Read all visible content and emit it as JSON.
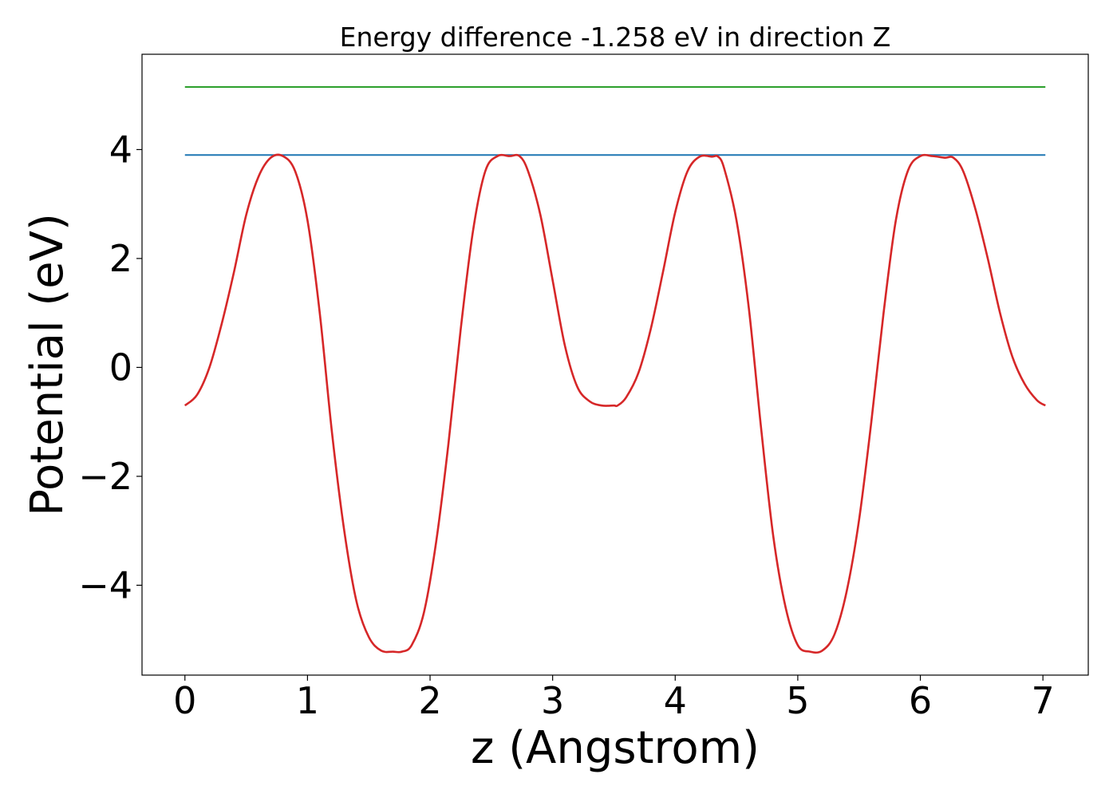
{
  "chart_data": {
    "type": "line",
    "title": "Energy difference -1.258 eV in direction Z",
    "xlabel": "z (Angstrom)",
    "ylabel": "Potential (eV)",
    "xlim": [
      -0.35,
      7.37
    ],
    "ylim": [
      -5.65,
      5.75
    ],
    "xticks": [
      0,
      1,
      2,
      3,
      4,
      5,
      6,
      7
    ],
    "xtick_labels": [
      "0",
      "1",
      "2",
      "3",
      "4",
      "5",
      "6",
      "7"
    ],
    "yticks": [
      -4,
      -2,
      0,
      2,
      4
    ],
    "ytick_labels": [
      "−4",
      "−2",
      "0",
      "2",
      "4"
    ],
    "grid": false,
    "legend": "none",
    "series": [
      {
        "color": "#2ca02c",
        "x": [
          0,
          7.02
        ],
        "y": [
          5.15,
          5.15
        ]
      },
      {
        "color": "#1f77b4",
        "x": [
          0,
          7.02
        ],
        "y": [
          3.9,
          3.9
        ]
      },
      {
        "color": "#d62728",
        "x": [
          0,
          0.1,
          0.2,
          0.3,
          0.4,
          0.5,
          0.6,
          0.7,
          0.8,
          0.9,
          1.0,
          1.1,
          1.2,
          1.3,
          1.4,
          1.5,
          1.6,
          1.7,
          1.77,
          1.85,
          1.95,
          2.05,
          2.15,
          2.25,
          2.35,
          2.45,
          2.55,
          2.65,
          2.73,
          2.8,
          2.9,
          3.0,
          3.1,
          3.2,
          3.3,
          3.4,
          3.5,
          3.53,
          3.6,
          3.7,
          3.8,
          3.9,
          4.0,
          4.1,
          4.2,
          4.3,
          4.35,
          4.4,
          4.5,
          4.6,
          4.7,
          4.8,
          4.9,
          5.0,
          5.1,
          5.2,
          5.3,
          5.4,
          5.5,
          5.6,
          5.7,
          5.8,
          5.9,
          6.0,
          6.1,
          6.2,
          6.27,
          6.35,
          6.45,
          6.55,
          6.65,
          6.75,
          6.85,
          6.95,
          7.02
        ],
        "y": [
          -0.7,
          -0.5,
          0.0,
          0.8,
          1.75,
          2.8,
          3.5,
          3.85,
          3.88,
          3.6,
          2.7,
          1.0,
          -1.2,
          -3.0,
          -4.3,
          -4.95,
          -5.2,
          -5.22,
          -5.22,
          -5.1,
          -4.5,
          -3.2,
          -1.4,
          0.7,
          2.5,
          3.6,
          3.88,
          3.88,
          3.88,
          3.6,
          2.8,
          1.6,
          0.4,
          -0.35,
          -0.62,
          -0.7,
          -0.7,
          -0.7,
          -0.55,
          -0.1,
          0.7,
          1.75,
          2.85,
          3.6,
          3.87,
          3.87,
          3.87,
          3.65,
          2.7,
          1.1,
          -1.1,
          -3.1,
          -4.4,
          -5.1,
          -5.22,
          -5.2,
          -4.9,
          -4.1,
          -2.8,
          -1.0,
          1.0,
          2.7,
          3.62,
          3.88,
          3.88,
          3.85,
          3.85,
          3.6,
          2.9,
          2.0,
          1.0,
          0.2,
          -0.3,
          -0.6,
          -0.7
        ]
      }
    ]
  }
}
